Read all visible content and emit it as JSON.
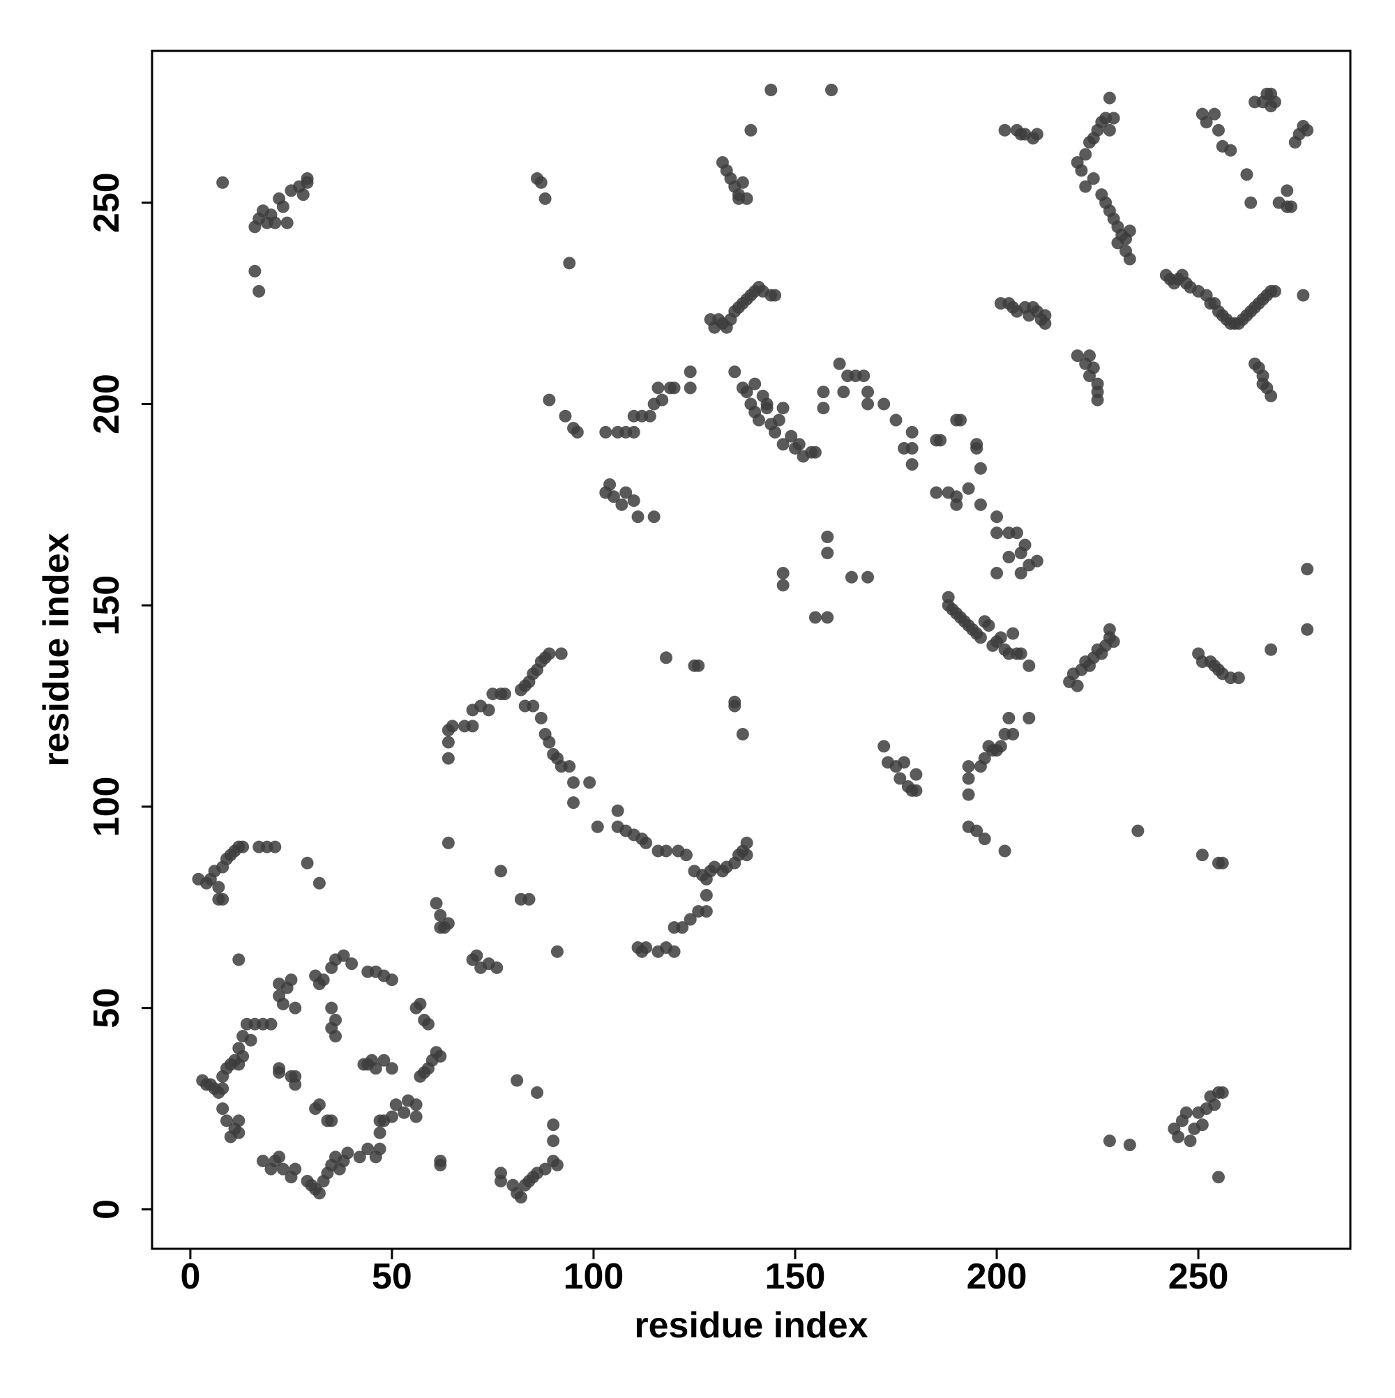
{
  "chart_data": {
    "type": "scatter",
    "x_label": "residue index",
    "y_label": "residue index",
    "color": "#3d3d3d",
    "xlim": [
      -9.5,
      287.7
    ],
    "ylim": [
      -9.8,
      287.7
    ],
    "xticks": [
      0,
      50,
      100,
      150,
      200,
      250
    ],
    "yticks": [
      0,
      50,
      100,
      150,
      200,
      250
    ],
    "x": [
      3,
      4,
      5,
      6,
      7,
      8,
      8,
      9,
      10,
      11,
      12,
      12,
      8,
      9,
      10,
      11,
      12,
      13,
      12,
      13,
      14,
      15,
      16,
      18,
      20,
      21,
      22,
      23,
      25,
      26,
      29,
      30,
      31,
      32,
      33,
      34,
      35,
      36,
      37,
      38,
      39,
      42,
      44,
      46,
      47,
      47,
      50,
      51,
      53,
      54,
      56,
      56,
      57,
      58,
      59,
      60,
      61,
      62,
      59,
      58,
      56,
      57,
      50,
      48,
      46,
      44,
      40,
      38,
      36,
      35,
      33,
      32,
      31,
      35,
      36,
      36,
      35,
      25,
      24,
      23,
      22,
      22,
      26,
      20,
      18,
      12,
      22,
      22,
      25,
      26,
      26,
      31,
      32,
      34,
      35,
      43,
      44,
      45,
      46,
      50,
      48,
      47,
      48,
      2,
      4,
      5,
      6,
      7,
      7,
      8,
      8,
      9,
      10,
      11,
      12,
      13,
      17,
      19,
      21,
      29,
      32,
      8,
      16,
      17,
      18,
      19,
      20,
      21,
      22,
      23,
      24,
      25,
      27,
      28,
      29,
      29,
      16,
      17,
      62,
      62,
      77,
      77,
      80,
      81,
      82,
      83,
      84,
      85,
      86,
      88,
      90,
      91,
      90,
      90,
      81,
      86,
      61,
      62,
      62,
      63,
      64,
      64,
      64,
      64,
      64,
      65,
      68,
      70,
      70,
      72,
      74,
      75,
      77,
      78,
      82,
      83,
      84,
      85,
      86,
      87,
      88,
      89,
      92,
      83,
      85,
      87,
      88,
      89,
      90,
      91,
      92,
      94,
      95,
      95,
      99,
      70,
      71,
      72,
      74,
      76,
      77,
      82,
      84,
      91,
      101,
      106,
      106,
      108,
      110,
      112,
      113,
      116,
      118,
      121,
      123,
      125,
      127,
      128,
      129,
      130,
      132,
      133,
      135,
      136,
      137,
      138,
      138,
      128,
      128,
      126,
      124,
      122,
      120,
      120,
      118,
      116,
      113,
      111,
      112,
      118,
      125,
      126,
      135,
      135,
      137,
      89,
      93,
      95,
      96,
      103,
      106,
      108,
      110,
      110,
      112,
      114,
      115,
      117,
      116,
      119,
      120,
      124,
      124,
      103,
      104,
      105,
      107,
      108,
      110,
      111,
      115,
      132,
      133,
      134,
      135,
      136,
      137,
      138,
      136,
      129,
      130,
      131,
      132,
      133,
      134,
      135,
      136,
      137,
      138,
      139,
      140,
      141,
      142,
      144,
      145,
      139,
      144,
      159,
      135,
      137,
      138,
      139,
      140,
      141,
      142,
      143,
      144,
      145,
      146,
      147,
      147,
      149,
      150,
      151,
      152,
      154,
      155,
      140,
      143,
      157,
      157,
      161,
      162,
      163,
      165,
      167,
      168,
      168,
      172,
      175,
      177,
      179,
      179,
      179,
      147,
      147,
      155,
      158,
      158,
      158,
      164,
      168,
      185,
      186,
      185,
      188,
      190,
      190,
      190,
      191,
      193,
      195,
      195,
      196,
      196,
      200,
      200,
      200,
      203,
      203,
      205,
      206,
      206,
      207,
      208,
      210,
      188,
      188,
      189,
      190,
      191,
      192,
      193,
      194,
      195,
      196,
      197,
      198,
      199,
      200,
      201,
      202,
      203,
      204,
      205,
      206,
      208,
      172,
      173,
      175,
      176,
      177,
      178,
      179,
      180,
      180,
      193,
      193,
      193,
      193,
      195,
      196,
      197,
      198,
      199,
      200,
      201,
      202,
      203,
      204,
      208,
      197,
      202,
      218,
      219,
      220,
      221,
      222,
      223,
      224,
      225,
      226,
      227,
      228,
      228,
      229,
      202,
      205,
      206,
      207,
      209,
      210,
      201,
      203,
      204,
      205,
      207,
      208,
      209,
      210,
      211,
      212,
      212,
      220,
      222,
      223,
      223,
      224,
      225,
      225,
      225,
      220,
      221,
      222,
      223,
      224,
      225,
      226,
      227,
      228,
      228,
      229,
      222,
      224,
      226,
      227,
      228,
      229,
      230,
      230,
      231,
      232,
      232,
      233,
      233,
      242,
      243,
      244,
      245,
      246,
      247,
      248,
      250,
      252,
      253,
      254,
      255,
      256,
      257,
      258,
      259,
      260,
      261,
      262,
      263,
      264,
      265,
      266,
      267,
      268,
      269,
      276,
      251,
      252,
      254,
      255,
      256,
      258,
      262,
      263,
      264,
      266,
      267,
      268,
      268,
      269,
      270,
      272,
      272,
      273,
      274,
      275,
      276,
      277,
      264,
      265,
      266,
      266,
      267,
      268,
      250,
      251,
      253,
      254,
      255,
      256,
      258,
      260,
      268,
      277,
      277,
      235,
      251,
      255,
      256,
      228,
      233,
      244,
      245,
      246,
      247,
      248,
      249,
      250,
      251,
      252,
      253,
      254,
      255,
      256,
      255,
      94,
      88,
      86,
      87
    ],
    "values": [
      32,
      31,
      31,
      30,
      29,
      30,
      25,
      22,
      18,
      20,
      22,
      19,
      33,
      35,
      36,
      37,
      36,
      38,
      40,
      43,
      46,
      42,
      46,
      12,
      10,
      12,
      13,
      10,
      8,
      10,
      7,
      6,
      5,
      4,
      7,
      9,
      11,
      13,
      10,
      12,
      14,
      13,
      15,
      13,
      15,
      22,
      23,
      26,
      24,
      27,
      26,
      23,
      33,
      34,
      35,
      37,
      39,
      38,
      46,
      47,
      50,
      51,
      57,
      58,
      59,
      59,
      61,
      63,
      62,
      60,
      57,
      56,
      58,
      50,
      47,
      43,
      45,
      57,
      55,
      51,
      53,
      56,
      50,
      46,
      46,
      62,
      35,
      34,
      33,
      33,
      31,
      25,
      26,
      22,
      22,
      36,
      36,
      37,
      35,
      35,
      37,
      19,
      22,
      82,
      81,
      82,
      84,
      80,
      77,
      77,
      85,
      87,
      88,
      89,
      90,
      90,
      90,
      90,
      90,
      86,
      81,
      255,
      244,
      246,
      248,
      245,
      247,
      245,
      251,
      249,
      245,
      253,
      254,
      252,
      255,
      256,
      233,
      228,
      12,
      11,
      9,
      7,
      6,
      4,
      3,
      6,
      7,
      8,
      9,
      10,
      12,
      11,
      17,
      21,
      32,
      29,
      76,
      73,
      70,
      70,
      71,
      91,
      112,
      116,
      119,
      120,
      120,
      120,
      124,
      125,
      124,
      128,
      128,
      128,
      129,
      130,
      131,
      133,
      134,
      136,
      137,
      138,
      138,
      125,
      125,
      122,
      118,
      116,
      113,
      112,
      110,
      110,
      106,
      101,
      106,
      62,
      63,
      60,
      61,
      60,
      84,
      77,
      77,
      64,
      95,
      95,
      99,
      94,
      93,
      92,
      91,
      89,
      89,
      89,
      88,
      84,
      83,
      82,
      84,
      85,
      84,
      85,
      86,
      88,
      89,
      91,
      88,
      78,
      74,
      74,
      72,
      70,
      70,
      64,
      65,
      64,
      65,
      65,
      64,
      137,
      135,
      135,
      126,
      125,
      118,
      201,
      197,
      194,
      193,
      193,
      193,
      193,
      193,
      197,
      197,
      197,
      200,
      201,
      204,
      204,
      204,
      204,
      208,
      178,
      180,
      177,
      175,
      178,
      176,
      172,
      172,
      260,
      258,
      256,
      254,
      252,
      255,
      251,
      251,
      221,
      219,
      221,
      220,
      219,
      221,
      223,
      224,
      225,
      226,
      227,
      228,
      229,
      228,
      227,
      227,
      268,
      278,
      278,
      208,
      204,
      203,
      200,
      198,
      196,
      202,
      199,
      195,
      193,
      196,
      199,
      190,
      192,
      189,
      190,
      187,
      188,
      188,
      205,
      200,
      203,
      199,
      210,
      203,
      207,
      207,
      207,
      203,
      200,
      200,
      196,
      189,
      189,
      185,
      193,
      158,
      155,
      147,
      147,
      167,
      163,
      157,
      157,
      191,
      191,
      178,
      178,
      177,
      175,
      196,
      196,
      179,
      190,
      189,
      175,
      184,
      172,
      168,
      158,
      168,
      162,
      168,
      163,
      158,
      165,
      160,
      161,
      152,
      150,
      149,
      148,
      147,
      146,
      145,
      144,
      143,
      142,
      146,
      145,
      140,
      141,
      142,
      139,
      138,
      143,
      138,
      138,
      135,
      115,
      111,
      110,
      107,
      111,
      105,
      104,
      108,
      104,
      110,
      107,
      103,
      95,
      94,
      110,
      112,
      115,
      114,
      114,
      115,
      118,
      122,
      118,
      122,
      92,
      89,
      131,
      133,
      130,
      134,
      136,
      135,
      137,
      139,
      138,
      140,
      142,
      144,
      141,
      268,
      268,
      267,
      267,
      266,
      267,
      225,
      225,
      224,
      223,
      224,
      222,
      224,
      223,
      221,
      220,
      222,
      212,
      210,
      207,
      212,
      209,
      205,
      203,
      201,
      260,
      258,
      262,
      265,
      266,
      268,
      270,
      271,
      276,
      268,
      271,
      254,
      256,
      252,
      250,
      248,
      246,
      244,
      240,
      242,
      241,
      238,
      243,
      236,
      232,
      231,
      230,
      231,
      232,
      230,
      229,
      228,
      227,
      225,
      225,
      223,
      222,
      221,
      220,
      220,
      220,
      221,
      222,
      223,
      224,
      225,
      226,
      227,
      228,
      228,
      227,
      272,
      270,
      272,
      268,
      264,
      263,
      257,
      250,
      275,
      275,
      277,
      277,
      274,
      275,
      250,
      253,
      249,
      249,
      265,
      267,
      269,
      268,
      210,
      209,
      207,
      205,
      204,
      202,
      138,
      136,
      136,
      135,
      134,
      133,
      132,
      132,
      139,
      159,
      144,
      94,
      88,
      86,
      86,
      17,
      16,
      20,
      18,
      22,
      24,
      17,
      20,
      24,
      21,
      25,
      28,
      26,
      29,
      29,
      8,
      235,
      251,
      256,
      255
    ]
  }
}
